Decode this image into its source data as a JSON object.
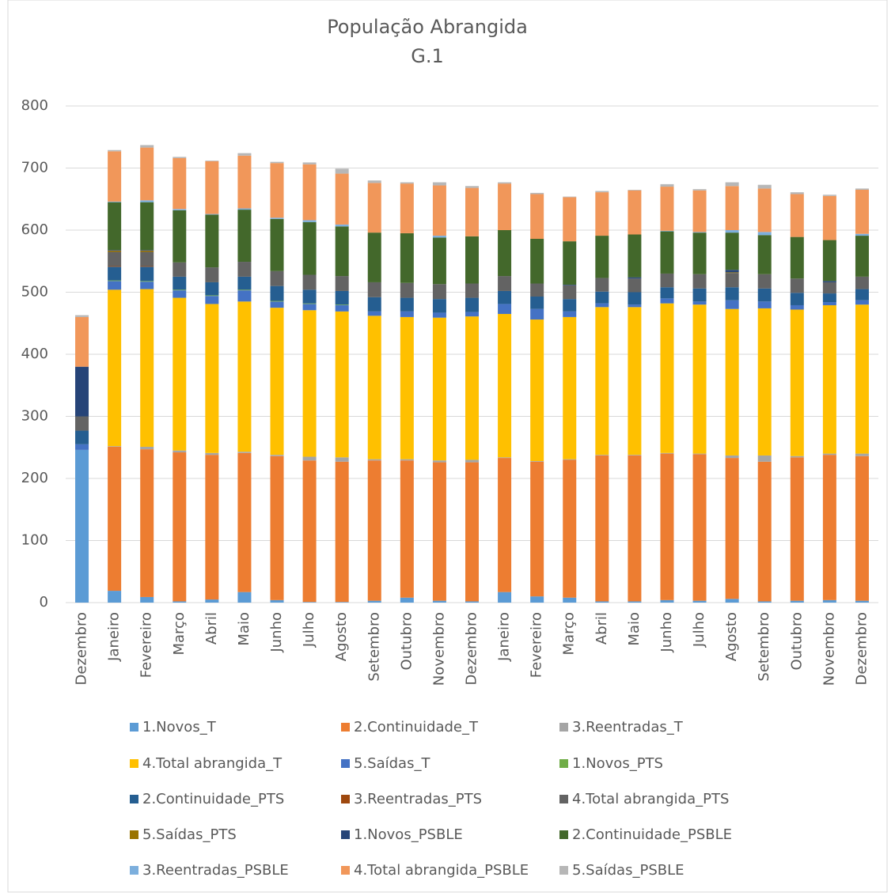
{
  "chart_data": {
    "type": "bar",
    "stacked": true,
    "title": "População Abrangida",
    "subtitle": "G.1",
    "categories": [
      "Dezembro",
      "Janeiro",
      "Fevereiro",
      "Março",
      "Abril",
      "Maio",
      "Junho",
      "Julho",
      "Agosto",
      "Setembro",
      "Outubro",
      "Novembro",
      "Dezembro",
      "Janeiro",
      "Fevereiro",
      "Março",
      "Abril",
      "Maio",
      "Junho",
      "Julho",
      "Agosto",
      "Setembro",
      "Outubro",
      "Novembro",
      "Dezembro"
    ],
    "series": [
      {
        "name": "1.Novos_T",
        "color": "#5B9BD5",
        "values": [
          246,
          19,
          9,
          2,
          5,
          17,
          4,
          1,
          1,
          3,
          8,
          3,
          2,
          17,
          10,
          8,
          2,
          2,
          4,
          3,
          6,
          2,
          3,
          4,
          3
        ]
      },
      {
        "name": "2.Continuidade_T",
        "color": "#ED7D31",
        "values": [
          0,
          232,
          238,
          240,
          233,
          224,
          232,
          228,
          226,
          226,
          221,
          223,
          224,
          216,
          217,
          222,
          235,
          235,
          236,
          236,
          227,
          225,
          231,
          234,
          233
        ]
      },
      {
        "name": "3.Reentradas_T",
        "color": "#A5A5A5",
        "values": [
          0,
          1,
          4,
          3,
          3,
          2,
          2,
          6,
          7,
          2,
          2,
          3,
          4,
          1,
          1,
          1,
          1,
          1,
          1,
          1,
          4,
          10,
          2,
          2,
          4
        ]
      },
      {
        "name": "4.Total abrangida_T",
        "color": "#FFC000",
        "values": [
          0,
          252,
          254,
          246,
          240,
          242,
          237,
          236,
          235,
          231,
          229,
          230,
          231,
          231,
          228,
          229,
          238,
          238,
          241,
          240,
          236,
          237,
          236,
          239,
          240
        ]
      },
      {
        "name": "5.Saídas_T",
        "color": "#4472C4",
        "values": [
          9,
          14,
          12,
          12,
          13,
          18,
          10,
          10,
          10,
          7,
          9,
          8,
          7,
          16,
          17,
          9,
          6,
          4,
          8,
          5,
          14,
          11,
          7,
          5,
          7
        ]
      },
      {
        "name": "1.Novos_PTS",
        "color": "#70AD47",
        "values": [
          0,
          1,
          1,
          1,
          1,
          1,
          1,
          1,
          1,
          0,
          0,
          0,
          0,
          0,
          0,
          0,
          0,
          0,
          0,
          0,
          0,
          0,
          0,
          0,
          0
        ]
      },
      {
        "name": "2.Continuidade_PTS",
        "color": "#255E91",
        "values": [
          22,
          22,
          23,
          21,
          21,
          21,
          24,
          22,
          22,
          23,
          22,
          22,
          23,
          21,
          20,
          20,
          19,
          20,
          18,
          21,
          21,
          21,
          20,
          14,
          18
        ]
      },
      {
        "name": "3.Reentradas_PTS",
        "color": "#9E480E",
        "values": [
          0,
          1,
          1,
          0,
          0,
          0,
          0,
          0,
          0,
          0,
          0,
          0,
          0,
          0,
          0,
          0,
          0,
          0,
          0,
          0,
          0,
          0,
          0,
          0,
          0
        ]
      },
      {
        "name": "4.Total abrangida_PTS",
        "color": "#636363",
        "values": [
          23,
          23,
          23,
          23,
          24,
          24,
          24,
          24,
          24,
          24,
          24,
          24,
          23,
          24,
          21,
          22,
          22,
          22,
          22,
          23,
          23,
          23,
          23,
          18,
          20
        ]
      },
      {
        "name": "5.Saídas_PTS",
        "color": "#997300",
        "values": [
          0,
          2,
          2,
          0,
          0,
          0,
          0,
          0,
          0,
          0,
          0,
          0,
          0,
          0,
          0,
          0,
          0,
          0,
          0,
          0,
          1,
          0,
          0,
          0,
          0
        ]
      },
      {
        "name": "1.Novos_PSBLE",
        "color": "#264478",
        "values": [
          80,
          1,
          1,
          0,
          0,
          0,
          0,
          0,
          0,
          0,
          0,
          0,
          0,
          0,
          0,
          1,
          0,
          2,
          0,
          0,
          4,
          0,
          0,
          2,
          0
        ]
      },
      {
        "name": "2.Continuidade_PSBLE",
        "color": "#43682B",
        "values": [
          0,
          77,
          77,
          84,
          85,
          84,
          84,
          85,
          80,
          80,
          80,
          75,
          76,
          74,
          72,
          70,
          68,
          69,
          68,
          67,
          60,
          63,
          67,
          66,
          66
        ]
      },
      {
        "name": "3.Reentradas_PSBLE",
        "color": "#7CAFDD",
        "values": [
          0,
          1,
          3,
          2,
          1,
          2,
          2,
          3,
          3,
          0,
          0,
          3,
          0,
          0,
          0,
          0,
          0,
          0,
          1,
          1,
          4,
          5,
          0,
          0,
          3
        ]
      },
      {
        "name": "4.Total abrangida_PSBLE",
        "color": "#F1975A",
        "values": [
          80,
          81,
          85,
          82,
          85,
          85,
          88,
          90,
          82,
          80,
          80,
          81,
          78,
          75,
          72,
          71,
          70,
          71,
          71,
          67,
          71,
          70,
          69,
          71,
          71
        ]
      },
      {
        "name": "5.Saídas_PSBLE",
        "color": "#B7B7B7",
        "values": [
          3,
          2,
          4,
          2,
          1,
          4,
          2,
          3,
          8,
          4,
          2,
          5,
          3,
          2,
          2,
          1,
          2,
          1,
          4,
          2,
          6,
          6,
          3,
          2,
          2
        ]
      }
    ],
    "ylim": [
      0,
      800
    ],
    "yticks": [
      0,
      100,
      200,
      300,
      400,
      500,
      600,
      700,
      800
    ],
    "grid": true,
    "legend": "bottom"
  }
}
